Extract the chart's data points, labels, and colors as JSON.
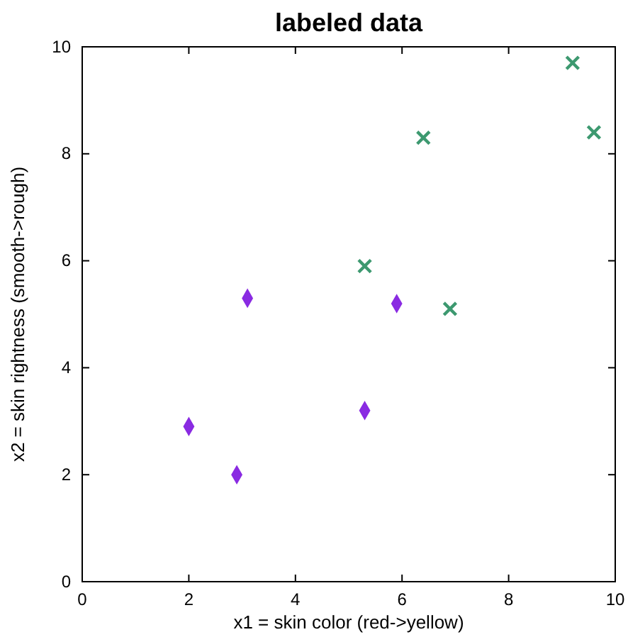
{
  "chart_data": {
    "type": "scatter",
    "title": "labeled data",
    "xlabel": "x1 = skin color (red->yellow)",
    "ylabel": "x2 = skin rightness (smooth->rough)",
    "xlim": [
      0,
      10
    ],
    "ylim": [
      0,
      10
    ],
    "xticks": [
      0,
      2,
      4,
      6,
      8,
      10
    ],
    "yticks": [
      0,
      2,
      4,
      6,
      8,
      10
    ],
    "grid": false,
    "series": [
      {
        "color": "#8a2be2",
        "marker": "diamond",
        "x": [
          2.0,
          2.9,
          3.1,
          5.3,
          5.9
        ],
        "values": [
          2.9,
          2.0,
          5.3,
          3.2,
          5.2
        ]
      },
      {
        "color": "#3d9970",
        "marker": "cross",
        "x": [
          5.3,
          6.4,
          6.9,
          9.2,
          9.6
        ],
        "values": [
          5.9,
          8.3,
          5.1,
          9.7,
          8.4
        ]
      }
    ]
  }
}
